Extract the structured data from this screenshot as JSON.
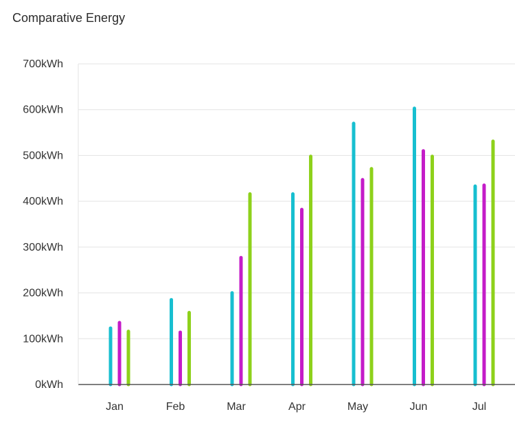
{
  "chart_data": {
    "type": "bar",
    "title": "Comparative Energy",
    "xlabel": "",
    "ylabel": "",
    "categories": [
      "Jan",
      "Feb",
      "Mar",
      "Apr",
      "May",
      "Jun",
      "Jul"
    ],
    "series": [
      {
        "color": "#17bfd0",
        "values": [
          123,
          185,
          200,
          416,
          570,
          603,
          433
        ]
      },
      {
        "color": "#c41cc8",
        "values": [
          135,
          114,
          277,
          382,
          447,
          510,
          435
        ]
      },
      {
        "color": "#8ed11b",
        "values": [
          116,
          157,
          416,
          498,
          471,
          498,
          531
        ]
      }
    ],
    "ylim": [
      0,
      700
    ],
    "yticks": [
      "0kWh",
      "100kWh",
      "200kWh",
      "300kWh",
      "400kWh",
      "500kWh",
      "600kWh",
      "700kWh"
    ],
    "grid": true,
    "legend": "none"
  }
}
